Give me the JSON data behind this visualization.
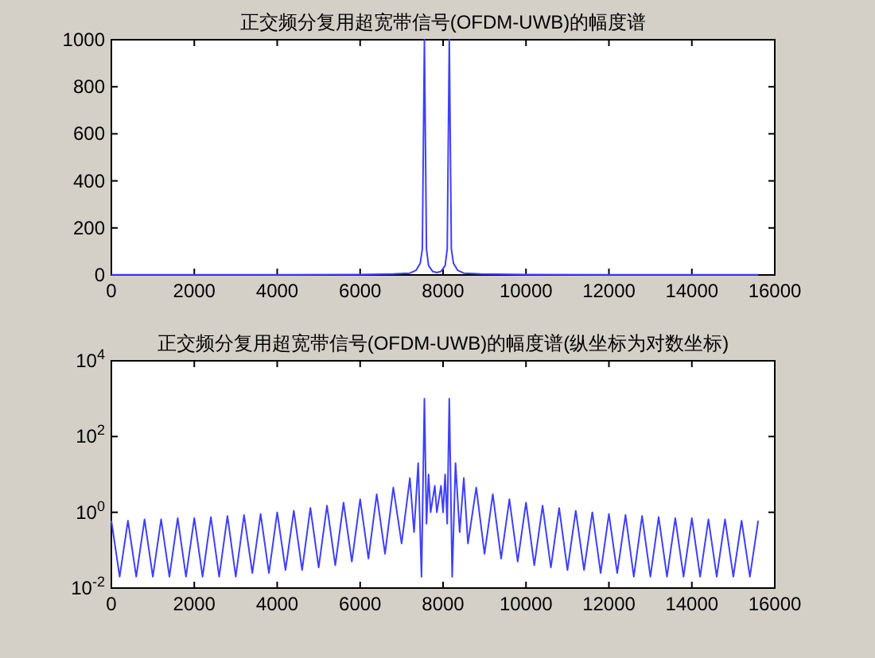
{
  "chart_data": [
    {
      "type": "line",
      "title": "正交频分复用超宽带信号(OFDM-UWB)的幅度谱",
      "color": "#3f3fff",
      "grid": false,
      "x": [
        0,
        2000,
        4000,
        6000,
        6800,
        7200,
        7350,
        7450,
        7500,
        7550,
        7600,
        7650,
        7750,
        7850,
        7950,
        8050,
        8100,
        8150,
        8200,
        8250,
        8350,
        8500,
        8900,
        10000,
        12000,
        14000,
        15600
      ],
      "values": [
        1,
        1,
        1,
        2,
        4,
        8,
        20,
        50,
        110,
        1000,
        110,
        40,
        15,
        10,
        15,
        40,
        110,
        1000,
        110,
        50,
        20,
        8,
        4,
        2,
        1,
        1,
        1
      ],
      "xlim": [
        0,
        16000
      ],
      "xticks": [
        0,
        2000,
        4000,
        6000,
        8000,
        10000,
        12000,
        14000,
        16000
      ],
      "ylim": [
        0,
        1000
      ],
      "yticks": [
        0,
        200,
        400,
        600,
        800,
        1000
      ]
    },
    {
      "type": "line",
      "title": "正交频分复用超宽带信号(OFDM-UWB)的幅度谱(纵坐标为对数坐标)",
      "color": "#3f3fff",
      "grid": false,
      "log": true,
      "x": [
        0,
        200,
        400,
        600,
        800,
        1000,
        1200,
        1400,
        1600,
        1800,
        2000,
        2200,
        2400,
        2600,
        2800,
        3000,
        3200,
        3400,
        3600,
        3800,
        4000,
        4200,
        4400,
        4600,
        4800,
        5000,
        5200,
        5400,
        5600,
        5800,
        6000,
        6200,
        6400,
        6600,
        6800,
        7000,
        7200,
        7300,
        7400,
        7480,
        7550,
        7600,
        7650,
        7700,
        7800,
        7850,
        7950,
        8000,
        8050,
        8100,
        8150,
        8220,
        8300,
        8400,
        8500,
        8600,
        8800,
        9000,
        9200,
        9400,
        9600,
        9800,
        10000,
        10200,
        10400,
        10600,
        10800,
        11000,
        11200,
        11400,
        11600,
        11800,
        12000,
        12200,
        12400,
        12600,
        12800,
        13000,
        13200,
        13400,
        13600,
        13800,
        14000,
        14200,
        14400,
        14600,
        14800,
        15000,
        15200,
        15400,
        15600
      ],
      "values": [
        0.6,
        0.02,
        0.6,
        0.02,
        0.65,
        0.02,
        0.65,
        0.02,
        0.7,
        0.02,
        0.7,
        0.02,
        0.75,
        0.02,
        0.8,
        0.02,
        0.85,
        0.025,
        0.9,
        0.025,
        1.0,
        0.03,
        1.1,
        0.03,
        1.3,
        0.035,
        1.5,
        0.04,
        1.8,
        0.05,
        2.2,
        0.06,
        3,
        0.08,
        4.5,
        0.15,
        8,
        0.3,
        20,
        0.02,
        1000,
        0.5,
        10,
        1.0,
        5,
        1.0,
        5,
        1.0,
        10,
        0.5,
        1000,
        0.02,
        20,
        0.3,
        8,
        0.15,
        4.5,
        0.08,
        3,
        0.06,
        2.2,
        0.05,
        1.8,
        0.04,
        1.5,
        0.035,
        1.3,
        0.03,
        1.1,
        0.03,
        1.0,
        0.025,
        0.9,
        0.025,
        0.85,
        0.02,
        0.8,
        0.02,
        0.75,
        0.02,
        0.7,
        0.02,
        0.7,
        0.02,
        0.65,
        0.02,
        0.65,
        0.02,
        0.6,
        0.02,
        0.6
      ],
      "xlim": [
        0,
        16000
      ],
      "xticks": [
        0,
        2000,
        4000,
        6000,
        8000,
        10000,
        12000,
        14000,
        16000
      ],
      "ylim": [
        0.01,
        10000
      ],
      "yticks": [
        {
          "value": 0.01,
          "label": "10$^{-2}$"
        },
        {
          "value": 1,
          "label": "10$^{0}$"
        },
        {
          "value": 100,
          "label": "10$^{2}$"
        },
        {
          "value": 10000,
          "label": "10$^{4}$"
        }
      ]
    }
  ]
}
